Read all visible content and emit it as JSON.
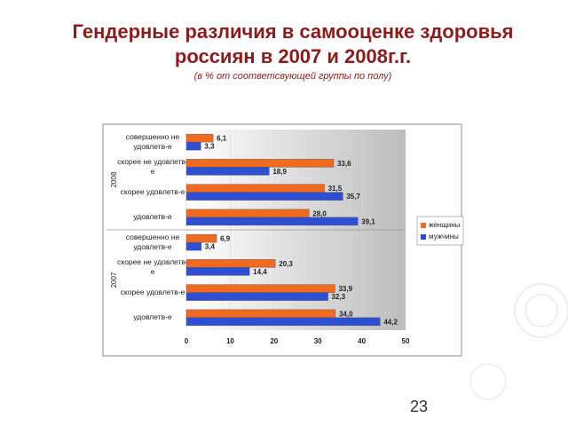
{
  "header": {
    "title": "Гендерные различия в самооценке здоровья россиян в 2007 и 2008г.г.",
    "subtitle": "(в % от соответсвующей группы по полу)"
  },
  "chart_data": {
    "type": "bar",
    "orientation": "horizontal",
    "groups": [
      {
        "label": "2008",
        "categories": [
          "совершенно не удовлетв-е",
          "скорее не удовлетв-е",
          "скорее удовлетв-е",
          "удовлетв-е"
        ]
      },
      {
        "label": "2007",
        "categories": [
          "совершенно не удовлетв-е",
          "скорее не удовлетв-е",
          "скорее удовлетв-е",
          "удовлетв-е"
        ]
      }
    ],
    "series": [
      {
        "name": "женщины",
        "color": "#f26a1f",
        "values": [
          6.1,
          33.6,
          31.5,
          28.0,
          6.9,
          20.3,
          33.9,
          34.0
        ],
        "value_labels": [
          "6,1",
          "33,6",
          "31,5",
          "28,0",
          "6,9",
          "20,3",
          "33,9",
          "34,0"
        ]
      },
      {
        "name": "мужчины",
        "color": "#2f4fd3",
        "values": [
          3.3,
          18.9,
          35.7,
          39.1,
          3.4,
          14.4,
          32.3,
          44.2
        ],
        "value_labels": [
          "3,3",
          "18,9",
          "35,7",
          "39,1",
          "3,4",
          "14,4",
          "32,3",
          "44,2"
        ]
      }
    ],
    "xlim": [
      0,
      50
    ],
    "xticks": [
      0,
      10,
      20,
      30,
      40,
      50
    ],
    "grid": true,
    "legend": "right"
  },
  "footer": {
    "page": "23"
  }
}
